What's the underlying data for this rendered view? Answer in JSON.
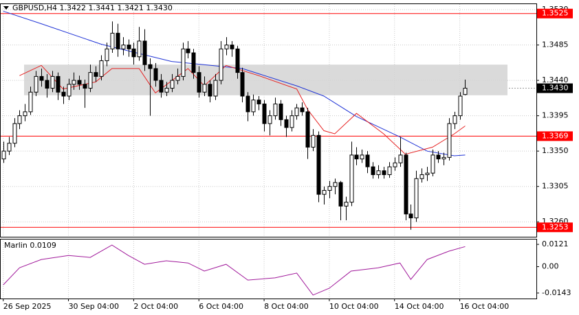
{
  "chart_data": {
    "type": "candlestick",
    "title": "GBPUSD,H4  1.3422 1.3441 1.3421 1.3430",
    "grid": true,
    "up_color": "#ffffff",
    "down_color": "#000000",
    "xlim": [
      -0.6,
      98.1
    ],
    "xticks": [
      {
        "value": 0,
        "label": "26 Sep 2025"
      },
      {
        "value": 12,
        "label": "30 Sep 04:00"
      },
      {
        "value": 24,
        "label": "2 Oct 04:00"
      },
      {
        "value": 36,
        "label": "6 Oct 04:00"
      },
      {
        "value": 48,
        "label": "8 Oct 04:00"
      },
      {
        "value": 60,
        "label": "10 Oct 04:00"
      },
      {
        "value": 72,
        "label": "14 Oct 04:00"
      },
      {
        "value": 84,
        "label": "16 Oct 04:00"
      }
    ],
    "ylim": [
      1.3241,
      1.3537
    ],
    "yticks": [
      {
        "value": 1.353,
        "label": "1.3530"
      },
      1.3485,
      {
        "value": 1.344,
        "label": "1.3440"
      },
      1.3395,
      {
        "value": 1.335,
        "label": "1.3350"
      },
      1.3305,
      {
        "value": 1.326,
        "label": "1.3260"
      }
    ],
    "levels": [
      {
        "value": 1.3525,
        "label": "1.3525"
      },
      {
        "value": 1.3369,
        "label": "1.3369"
      },
      {
        "value": 1.3253,
        "label": "1.3253"
      }
    ],
    "level_color": "#ff0000",
    "current_price": {
      "value": 1.343,
      "label": "1.3430"
    },
    "zone": [
      1.3421,
      1.346
    ],
    "candles": [
      [
        1.334,
        1.3362,
        1.3335,
        1.335
      ],
      [
        1.335,
        1.3368,
        1.3345,
        1.336
      ],
      [
        1.336,
        1.3392,
        1.3355,
        1.3385
      ],
      [
        1.3385,
        1.3402,
        1.3378,
        1.3395
      ],
      [
        1.3395,
        1.341,
        1.3388,
        1.34
      ],
      [
        1.34,
        1.3432,
        1.3396,
        1.3425
      ],
      [
        1.3425,
        1.3452,
        1.342,
        1.3445
      ],
      [
        1.3445,
        1.3455,
        1.3432,
        1.344
      ],
      [
        1.344,
        1.3448,
        1.3418,
        1.343
      ],
      [
        1.343,
        1.3452,
        1.3425,
        1.3445
      ],
      [
        1.3445,
        1.345,
        1.3415,
        1.3425
      ],
      [
        1.3425,
        1.3432,
        1.341,
        1.342
      ],
      [
        1.342,
        1.3442,
        1.3415,
        1.3435
      ],
      [
        1.3435,
        1.345,
        1.3428,
        1.344
      ],
      [
        1.344,
        1.3446,
        1.3428,
        1.3435
      ],
      [
        1.3435,
        1.3441,
        1.3405,
        1.343
      ],
      [
        1.343,
        1.346,
        1.3425,
        1.345
      ],
      [
        1.345,
        1.3458,
        1.3438,
        1.3445
      ],
      [
        1.3445,
        1.3472,
        1.344,
        1.3465
      ],
      [
        1.3465,
        1.3488,
        1.3458,
        1.348
      ],
      [
        1.348,
        1.3515,
        1.3475,
        1.35
      ],
      [
        1.35,
        1.3512,
        1.347,
        1.348
      ],
      [
        1.348,
        1.3495,
        1.3472,
        1.3485
      ],
      [
        1.3485,
        1.3492,
        1.347,
        1.348
      ],
      [
        1.348,
        1.3488,
        1.346,
        1.347
      ],
      [
        1.347,
        1.3508,
        1.3465,
        1.349
      ],
      [
        1.349,
        1.3505,
        1.3452,
        1.346
      ],
      [
        1.346,
        1.3468,
        1.3395,
        1.3455
      ],
      [
        1.3455,
        1.3462,
        1.3432,
        1.344
      ],
      [
        1.344,
        1.3448,
        1.3418,
        1.3425
      ],
      [
        1.3425,
        1.3438,
        1.342,
        1.343
      ],
      [
        1.343,
        1.3448,
        1.3425,
        1.344
      ],
      [
        1.344,
        1.3455,
        1.3435,
        1.3445
      ],
      [
        1.3445,
        1.3488,
        1.344,
        1.348
      ],
      [
        1.348,
        1.349,
        1.3468,
        1.3475
      ],
      [
        1.3475,
        1.348,
        1.3442,
        1.345
      ],
      [
        1.345,
        1.3458,
        1.3418,
        1.3425
      ],
      [
        1.3425,
        1.3445,
        1.342,
        1.3435
      ],
      [
        1.3435,
        1.344,
        1.3412,
        1.342
      ],
      [
        1.342,
        1.3448,
        1.3415,
        1.344
      ],
      [
        1.344,
        1.349,
        1.3435,
        1.348
      ],
      [
        1.348,
        1.3495,
        1.3472,
        1.3485
      ],
      [
        1.3485,
        1.349,
        1.347,
        1.348
      ],
      [
        1.348,
        1.3484,
        1.3442,
        1.345
      ],
      [
        1.345,
        1.3456,
        1.3412,
        1.342
      ],
      [
        1.342,
        1.3425,
        1.3388,
        1.34
      ],
      [
        1.34,
        1.3422,
        1.3395,
        1.3415
      ],
      [
        1.3415,
        1.342,
        1.3402,
        1.341
      ],
      [
        1.341,
        1.3415,
        1.3375,
        1.3385
      ],
      [
        1.3385,
        1.3402,
        1.337,
        1.3395
      ],
      [
        1.3395,
        1.3418,
        1.339,
        1.341
      ],
      [
        1.341,
        1.3415,
        1.3382,
        1.339
      ],
      [
        1.339,
        1.3395,
        1.3368,
        1.338
      ],
      [
        1.338,
        1.3402,
        1.3375,
        1.3395
      ],
      [
        1.3395,
        1.341,
        1.339,
        1.3405
      ],
      [
        1.3405,
        1.3412,
        1.3395,
        1.34
      ],
      [
        1.34,
        1.3405,
        1.334,
        1.3355
      ],
      [
        1.3355,
        1.3378,
        1.335,
        1.337
      ],
      [
        1.337,
        1.3375,
        1.3285,
        1.3295
      ],
      [
        1.3295,
        1.3305,
        1.3282,
        1.33
      ],
      [
        1.33,
        1.3312,
        1.329,
        1.3305
      ],
      [
        1.3305,
        1.3315,
        1.3295,
        1.331
      ],
      [
        1.331,
        1.3312,
        1.3262,
        1.328
      ],
      [
        1.328,
        1.3292,
        1.3262,
        1.3285
      ],
      [
        1.3285,
        1.3362,
        1.328,
        1.3345
      ],
      [
        1.3345,
        1.3355,
        1.3332,
        1.334
      ],
      [
        1.334,
        1.3352,
        1.3335,
        1.3345
      ],
      [
        1.3345,
        1.335,
        1.3322,
        1.333
      ],
      [
        1.333,
        1.3336,
        1.3315,
        1.332
      ],
      [
        1.332,
        1.3332,
        1.3315,
        1.3325
      ],
      [
        1.3325,
        1.333,
        1.3315,
        1.332
      ],
      [
        1.332,
        1.3336,
        1.3316,
        1.333
      ],
      [
        1.333,
        1.3342,
        1.3325,
        1.3335
      ],
      [
        1.3335,
        1.3368,
        1.333,
        1.3345
      ],
      [
        1.3345,
        1.3348,
        1.3262,
        1.327
      ],
      [
        1.327,
        1.3282,
        1.325,
        1.3265
      ],
      [
        1.3265,
        1.3325,
        1.326,
        1.3315
      ],
      [
        1.3315,
        1.3328,
        1.331,
        1.332
      ],
      [
        1.332,
        1.333,
        1.3312,
        1.3322
      ],
      [
        1.3322,
        1.3352,
        1.3318,
        1.3345
      ],
      [
        1.3345,
        1.335,
        1.3335,
        1.334
      ],
      [
        1.334,
        1.3348,
        1.3332,
        1.3342
      ],
      [
        1.3342,
        1.3392,
        1.3338,
        1.3385
      ],
      [
        1.3385,
        1.34,
        1.3378,
        1.3395
      ],
      [
        1.3395,
        1.3425,
        1.339,
        1.342
      ],
      [
        1.3422,
        1.3441,
        1.3421,
        1.343
      ]
    ],
    "ma_blue": {
      "color": "#1f33d6",
      "x": [
        0,
        7,
        18,
        31,
        44,
        54,
        59,
        65,
        73,
        78,
        83,
        85
      ],
      "values": [
        1.3528,
        1.3512,
        1.3486,
        1.3464,
        1.3455,
        1.3433,
        1.342,
        1.3394,
        1.3368,
        1.335,
        1.3344,
        1.3345
      ]
    },
    "ma_red": {
      "color": "#e62020",
      "x": [
        3,
        7,
        11,
        17,
        20,
        25,
        28,
        34,
        37,
        41,
        47,
        54,
        56,
        59,
        61,
        65,
        70,
        74,
        79,
        83,
        85
      ],
      "values": [
        1.3446,
        1.3459,
        1.3429,
        1.3438,
        1.3455,
        1.3455,
        1.3424,
        1.3455,
        1.3433,
        1.3459,
        1.3446,
        1.3429,
        1.3403,
        1.3376,
        1.3372,
        1.3398,
        1.3372,
        1.3346,
        1.3355,
        1.3372,
        1.3382
      ]
    },
    "indicator": {
      "label": "Marlin 0.0109",
      "color": "#a0189a",
      "ylim": [
        -0.0173,
        0.0151
      ],
      "yticks": [
        0.0121,
        {
          "value": 0,
          "label": "0.00"
        },
        -0.0143
      ],
      "x": [
        0,
        3,
        7,
        12,
        16,
        20,
        23,
        26,
        30,
        34,
        37,
        41,
        45,
        50,
        54,
        57,
        60,
        64,
        69,
        73,
        75,
        78,
        82,
        85
      ],
      "values": [
        -0.0099,
        -0.0006,
        0.0039,
        0.0061,
        0.005,
        0.0117,
        0.0061,
        0.0013,
        0.0032,
        0.002,
        -0.0024,
        0.0013,
        -0.0073,
        -0.0061,
        -0.0035,
        -0.0154,
        -0.0117,
        -0.0024,
        -0.0006,
        0.002,
        -0.0069,
        0.0039,
        0.0084,
        0.0109
      ]
    }
  }
}
